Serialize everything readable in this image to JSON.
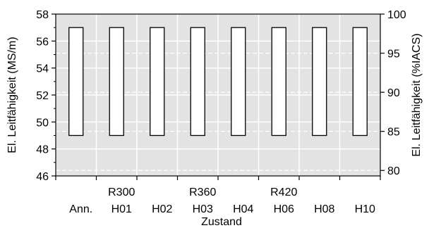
{
  "chart_data": {
    "type": "bar",
    "categories": [
      {
        "top": "",
        "bottom": "Ann."
      },
      {
        "top": "R300",
        "bottom": "H01"
      },
      {
        "top": "",
        "bottom": "H02"
      },
      {
        "top": "R360",
        "bottom": "H03"
      },
      {
        "top": "",
        "bottom": "H04"
      },
      {
        "top": "R420",
        "bottom": "H06"
      },
      {
        "top": "",
        "bottom": "H08"
      },
      {
        "top": "",
        "bottom": "H10"
      }
    ],
    "bars": [
      {
        "low": 49.0,
        "high": 57.0
      },
      {
        "low": 49.0,
        "high": 57.0
      },
      {
        "low": 49.0,
        "high": 57.0
      },
      {
        "low": 49.0,
        "high": 57.0
      },
      {
        "low": 49.0,
        "high": 57.0
      },
      {
        "low": 49.0,
        "high": 57.0
      },
      {
        "low": 49.0,
        "high": 57.0
      },
      {
        "low": 49.0,
        "high": 57.0
      }
    ],
    "xlabel": "Zustand",
    "ylabel": "El. Leitfähigkeit  (MS/m)",
    "y2label": "El. Leitfähigkeit  (%IACS)",
    "ylim": [
      46,
      58
    ],
    "yticks": [
      46,
      48,
      50,
      52,
      54,
      56,
      58
    ],
    "y2lim": [
      79.3,
      100
    ],
    "y2ticks": [
      80,
      85,
      90,
      95,
      100
    ],
    "grid": true,
    "colors": {
      "plot_background": "#e3e3e3",
      "grid": "#ffffff",
      "bar_fill": "#ffffff",
      "bar_stroke": "#000000"
    }
  }
}
